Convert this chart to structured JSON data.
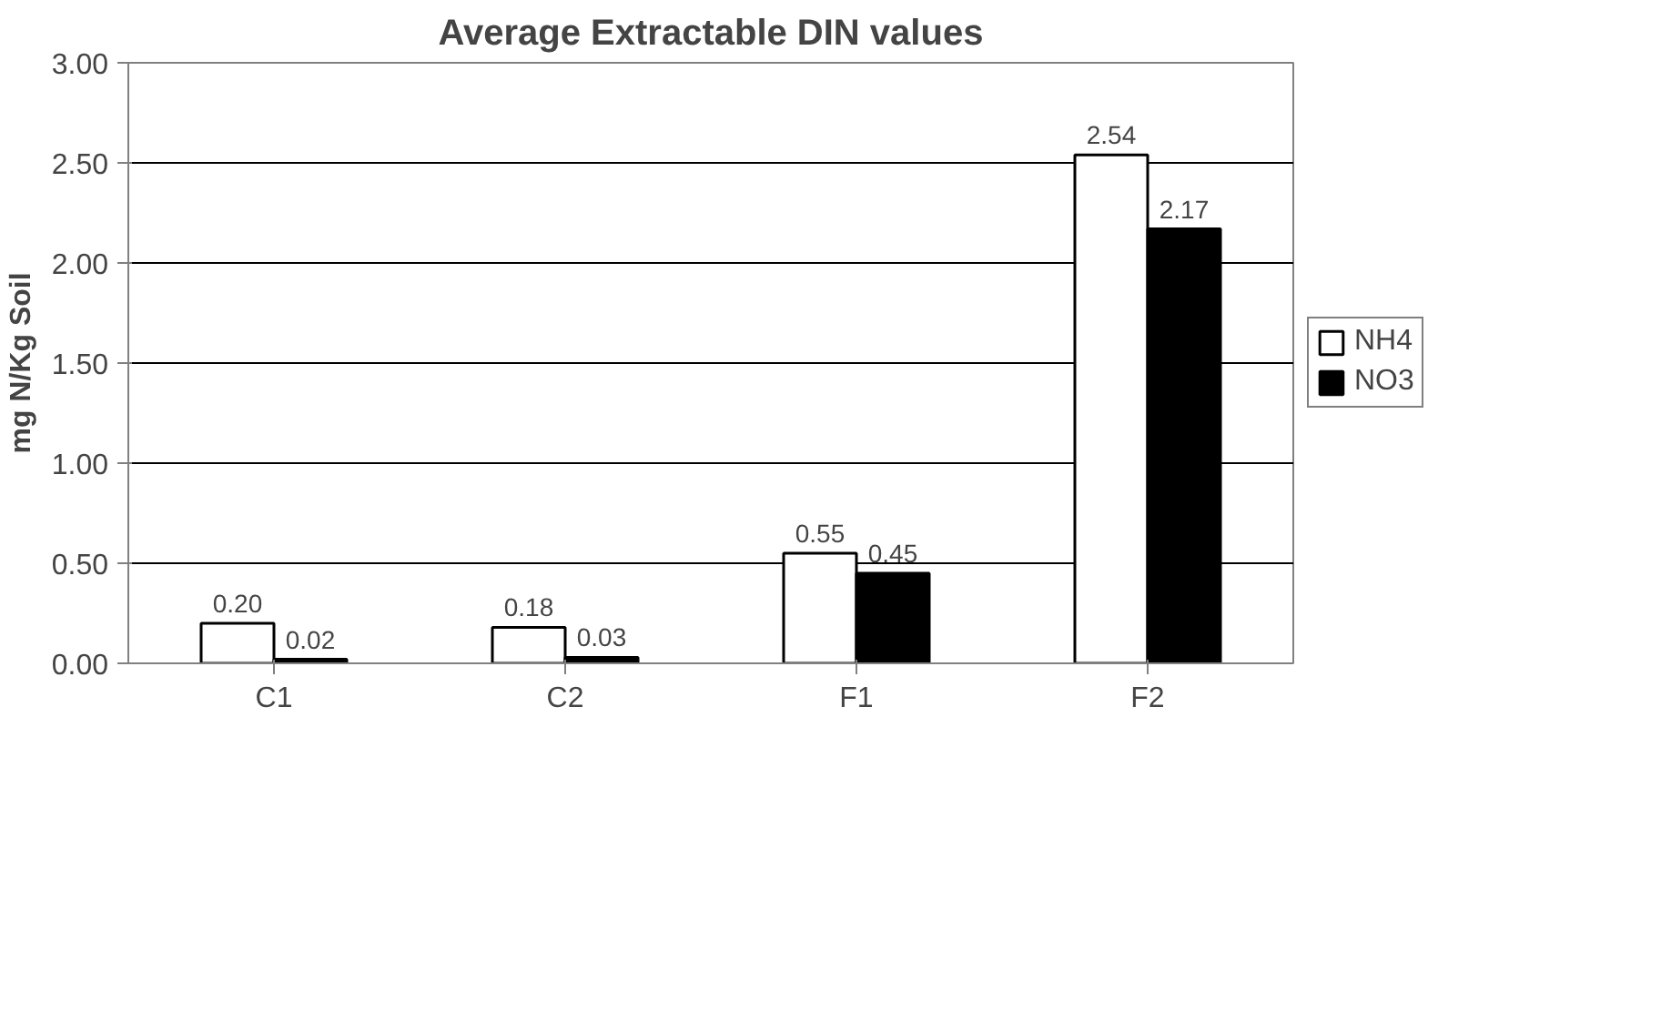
{
  "chart_data": {
    "type": "bar",
    "title": "Average Extractable DIN values",
    "ylabel": "mg N/Kg Soil",
    "categories": [
      "C1",
      "C2",
      "F1",
      "F2"
    ],
    "series": [
      {
        "name": "NH4",
        "color": "#ffffff",
        "values": [
          0.2,
          0.18,
          0.55,
          2.54
        ],
        "value_labels": [
          "0.20",
          "0.18",
          "0.55",
          "2.54"
        ]
      },
      {
        "name": "NO3",
        "color": "#000000",
        "values": [
          0.02,
          0.03,
          0.45,
          2.17
        ],
        "value_labels": [
          "0.02",
          "0.03",
          "0.45",
          "2.17"
        ]
      }
    ],
    "ylim": [
      0,
      3
    ],
    "yticks": [
      {
        "value": 0,
        "label": "0.00"
      },
      {
        "value": 0.5,
        "label": "0.50"
      },
      {
        "value": 1,
        "label": "1.00"
      },
      {
        "value": 1.5,
        "label": "1.50"
      },
      {
        "value": 2,
        "label": "2.00"
      },
      {
        "value": 2.5,
        "label": "2.50"
      },
      {
        "value": 3,
        "label": "3.00"
      }
    ],
    "grid": "y",
    "legend": "right"
  }
}
